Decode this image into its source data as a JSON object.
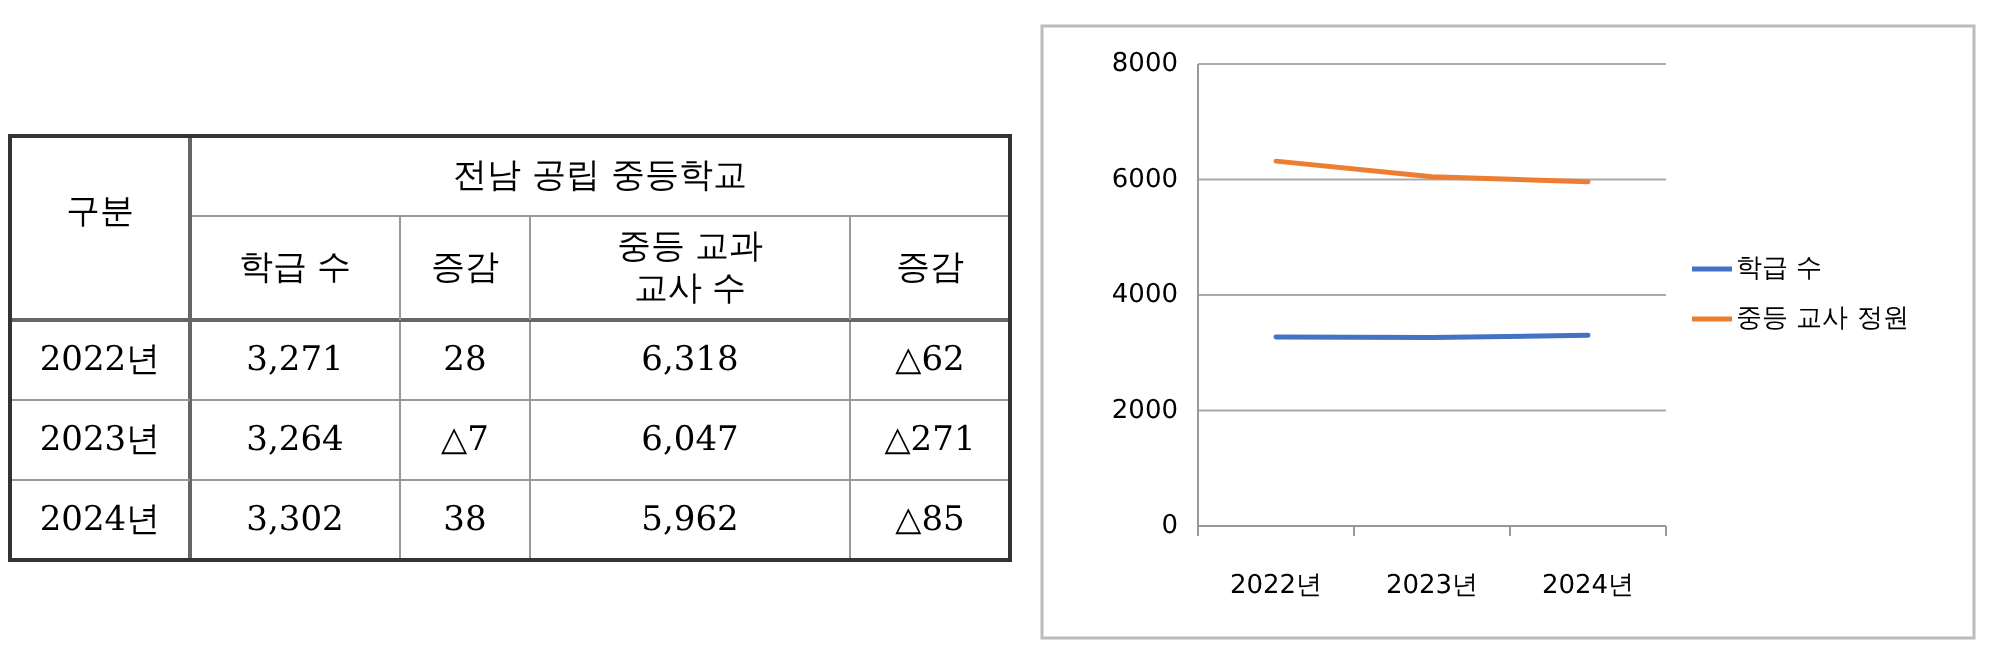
{
  "chart_data": [
    {
      "type": "other",
      "title": "전남 공립 중등학교",
      "ylabel": "구분",
      "categories": [
        "학급 수",
        "증감",
        "중등 교과\n교사 수",
        "증감"
      ],
      "y_categories": [
        "2022년",
        "2023년",
        "2024년"
      ],
      "cell_labels": [
        [
          "3,271",
          "28",
          "6,318",
          "△62"
        ],
        [
          "3,264",
          "△7",
          "6,047",
          "△271"
        ],
        [
          "3,302",
          "38",
          "5,962",
          "△85"
        ]
      ]
    },
    {
      "type": "line",
      "categories": [
        "2022년",
        "2023년",
        "2024년"
      ],
      "series": [
        {
          "name": "학급 수",
          "color": "#4472c4",
          "values": [
            3271,
            3264,
            3302
          ]
        },
        {
          "name": "중등 교사 정원",
          "color": "#ed7d31",
          "values": [
            6318,
            6047,
            5962
          ]
        }
      ],
      "ylim": [
        0,
        8000
      ],
      "yticks": [
        0,
        2000,
        4000,
        6000,
        8000
      ],
      "grid": "y",
      "legend": "right"
    }
  ]
}
